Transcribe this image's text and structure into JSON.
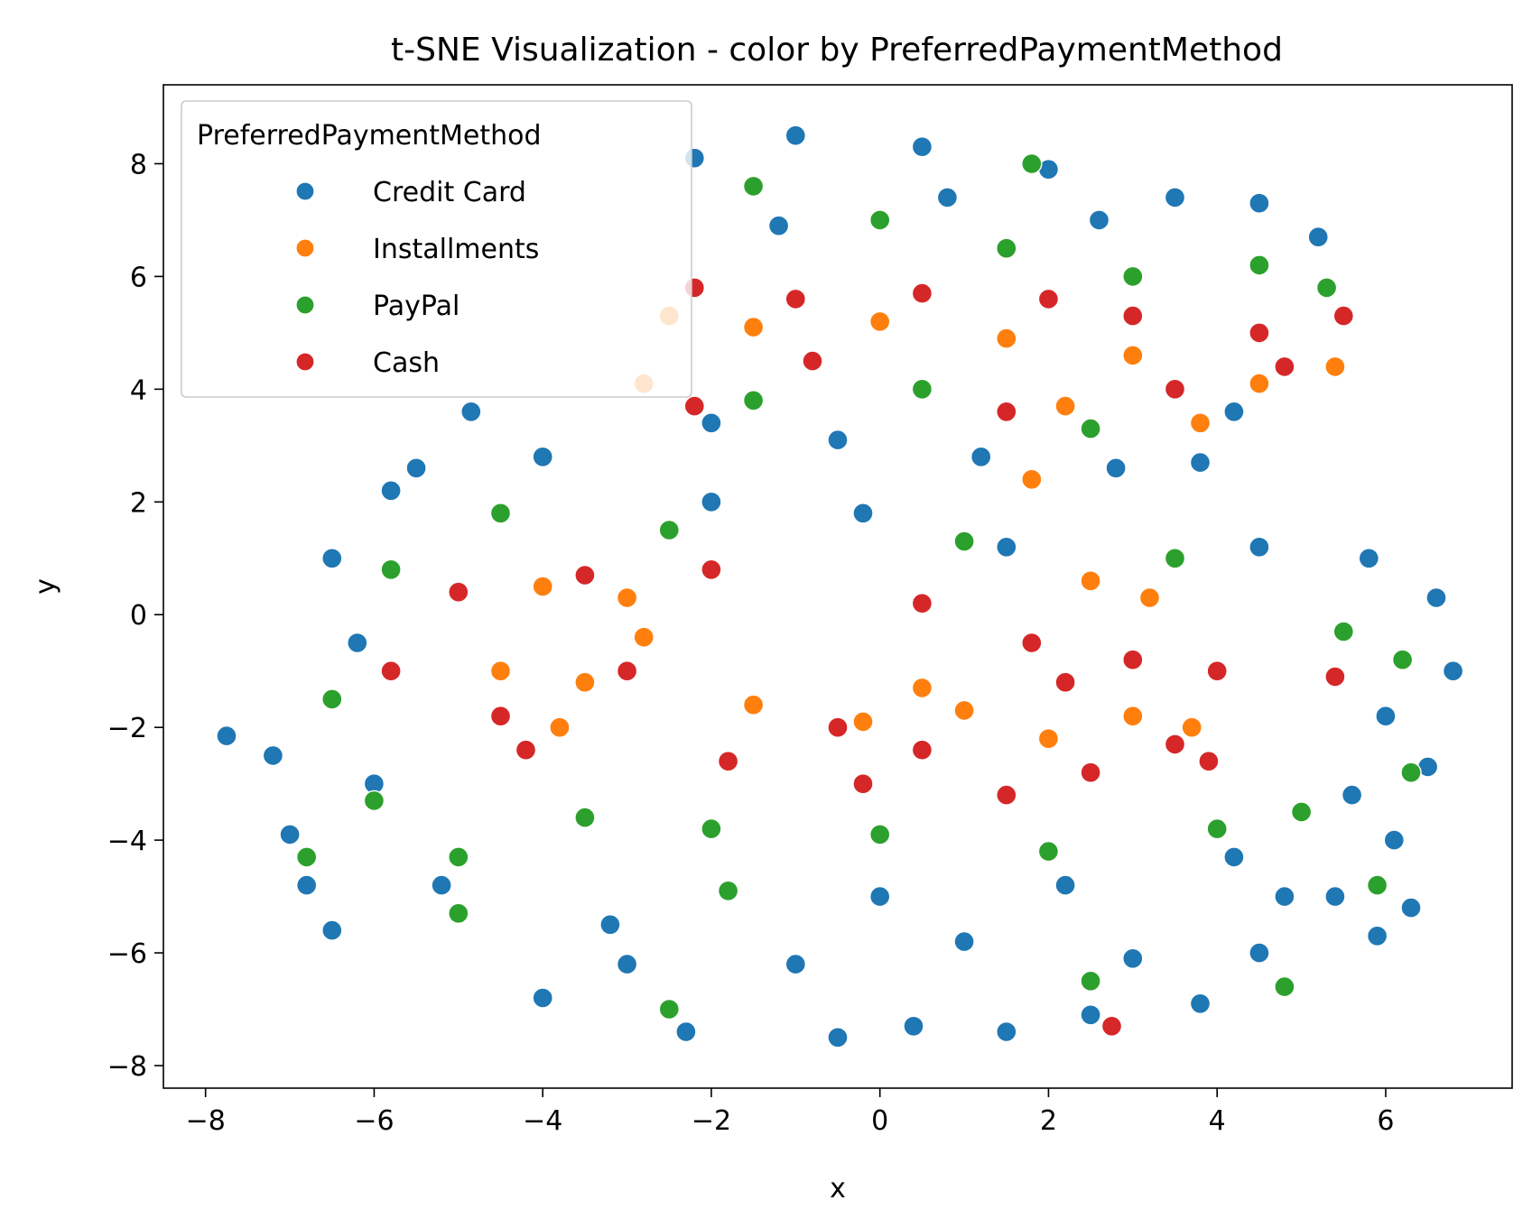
{
  "chart_data": {
    "type": "scatter",
    "title": "t-SNE Visualization - color by PreferredPaymentMethod",
    "xlabel": "x",
    "ylabel": "y",
    "xlim": [
      -8.5,
      7.5
    ],
    "ylim": [
      -8.4,
      9.4
    ],
    "xticks": [
      -8,
      -6,
      -4,
      -2,
      0,
      2,
      4,
      6
    ],
    "yticks": [
      -8,
      -6,
      -4,
      -2,
      0,
      2,
      4,
      6,
      8
    ],
    "xtick_labels": [
      "−8",
      "−6",
      "−4",
      "−2",
      "0",
      "2",
      "4",
      "6"
    ],
    "ytick_labels": [
      "−8",
      "−6",
      "−4",
      "−2",
      "0",
      "2",
      "4",
      "6",
      "8"
    ],
    "grid": false,
    "legend": {
      "title": "PreferredPaymentMethod",
      "placement": "top-left",
      "entries": [
        "Credit Card",
        "Installments",
        "PayPal",
        "Cash"
      ]
    },
    "colors": {
      "Credit Card": "#1f77b4",
      "Installments": "#ff7f0e",
      "PayPal": "#2ca02c",
      "Cash": "#d62728"
    },
    "series": [
      {
        "name": "Credit Card",
        "points": [
          [
            -7.75,
            -2.15
          ],
          [
            -4.85,
            3.6
          ],
          [
            -7.0,
            -3.9
          ],
          [
            -6.5,
            -5.6
          ],
          [
            -4.0,
            -6.8
          ],
          [
            -2.3,
            -7.4
          ],
          [
            -0.5,
            -7.5
          ],
          [
            0.4,
            -7.3
          ],
          [
            1.5,
            -7.4
          ],
          [
            2.5,
            -7.1
          ],
          [
            3.8,
            -6.9
          ],
          [
            4.5,
            -6.0
          ],
          [
            5.4,
            -5.0
          ],
          [
            5.9,
            -5.7
          ],
          [
            6.3,
            -5.2
          ],
          [
            6.5,
            -2.7
          ],
          [
            6.8,
            -1.0
          ],
          [
            6.6,
            0.3
          ],
          [
            5.8,
            1.0
          ],
          [
            4.5,
            1.2
          ],
          [
            -6.5,
            1.0
          ],
          [
            -5.5,
            2.6
          ],
          [
            -4.0,
            2.8
          ],
          [
            -2.0,
            2.0
          ],
          [
            -0.2,
            1.8
          ],
          [
            1.5,
            1.2
          ],
          [
            -6.8,
            -4.8
          ],
          [
            -5.2,
            -4.8
          ],
          [
            -3.2,
            -5.5
          ],
          [
            -1.0,
            -6.2
          ],
          [
            1.0,
            -5.8
          ],
          [
            3.0,
            -6.1
          ],
          [
            4.8,
            -5.0
          ],
          [
            -7.2,
            -2.5
          ],
          [
            6.1,
            -4.0
          ],
          [
            -2.2,
            8.1
          ],
          [
            -1.0,
            8.5
          ],
          [
            0.5,
            8.3
          ],
          [
            2.0,
            7.9
          ],
          [
            3.5,
            7.4
          ],
          [
            4.5,
            7.3
          ],
          [
            5.2,
            6.7
          ],
          [
            -2.0,
            3.4
          ],
          [
            -0.5,
            3.1
          ],
          [
            1.2,
            2.8
          ],
          [
            2.8,
            2.6
          ],
          [
            3.8,
            2.7
          ],
          [
            4.2,
            3.6
          ],
          [
            -1.2,
            6.9
          ],
          [
            0.8,
            7.4
          ],
          [
            2.6,
            7.0
          ],
          [
            -6.2,
            -0.5
          ],
          [
            -5.8,
            2.2
          ],
          [
            5.6,
            -3.2
          ],
          [
            -3.0,
            -6.2
          ],
          [
            0.0,
            -5.0
          ],
          [
            2.2,
            -4.8
          ],
          [
            4.2,
            -4.3
          ],
          [
            -6.0,
            -3.0
          ],
          [
            6.0,
            -1.8
          ]
        ]
      },
      {
        "name": "Installments",
        "points": [
          [
            1.8,
            2.4
          ],
          [
            -3.5,
            -1.2
          ],
          [
            -4.5,
            -1.0
          ],
          [
            -2.8,
            -0.4
          ],
          [
            -1.5,
            -1.6
          ],
          [
            -0.2,
            -1.9
          ],
          [
            1.0,
            -1.7
          ],
          [
            2.0,
            -2.2
          ],
          [
            3.0,
            -1.8
          ],
          [
            3.7,
            -2.0
          ],
          [
            -4.0,
            0.5
          ],
          [
            -3.0,
            0.3
          ],
          [
            3.2,
            0.3
          ],
          [
            2.5,
            0.6
          ],
          [
            -2.5,
            5.3
          ],
          [
            -1.5,
            5.1
          ],
          [
            0.0,
            5.2
          ],
          [
            1.5,
            4.9
          ],
          [
            3.0,
            4.6
          ],
          [
            4.5,
            4.1
          ],
          [
            5.4,
            4.4
          ],
          [
            -2.8,
            4.1
          ],
          [
            2.2,
            3.7
          ],
          [
            3.8,
            3.4
          ],
          [
            -3.8,
            -2.0
          ],
          [
            0.5,
            -1.3
          ]
        ]
      },
      {
        "name": "PayPal",
        "points": [
          [
            -6.0,
            -3.3
          ],
          [
            -5.0,
            -4.3
          ],
          [
            -3.5,
            -3.6
          ],
          [
            -2.0,
            -3.8
          ],
          [
            0.0,
            -3.9
          ],
          [
            2.0,
            -4.2
          ],
          [
            4.0,
            -3.8
          ],
          [
            5.0,
            -3.5
          ],
          [
            -6.5,
            -1.5
          ],
          [
            -5.8,
            0.8
          ],
          [
            5.5,
            -0.3
          ],
          [
            6.2,
            -0.8
          ],
          [
            -4.5,
            1.8
          ],
          [
            -2.5,
            1.5
          ],
          [
            1.0,
            1.3
          ],
          [
            3.5,
            1.0
          ],
          [
            -1.5,
            7.6
          ],
          [
            0.0,
            7.0
          ],
          [
            1.5,
            6.5
          ],
          [
            3.0,
            6.0
          ],
          [
            4.5,
            6.2
          ],
          [
            5.3,
            5.8
          ],
          [
            -1.5,
            3.8
          ],
          [
            0.5,
            4.0
          ],
          [
            2.5,
            3.3
          ],
          [
            1.8,
            8.0
          ],
          [
            -5.0,
            -5.3
          ],
          [
            -2.5,
            -7.0
          ],
          [
            2.5,
            -6.5
          ],
          [
            4.8,
            -6.6
          ],
          [
            6.3,
            -2.8
          ],
          [
            -6.8,
            -4.3
          ],
          [
            5.9,
            -4.8
          ],
          [
            -1.8,
            -4.9
          ]
        ]
      },
      {
        "name": "Cash",
        "points": [
          [
            2.75,
            -7.3
          ],
          [
            -5.8,
            -1.0
          ],
          [
            -5.0,
            0.4
          ],
          [
            -4.5,
            -1.8
          ],
          [
            -3.0,
            -1.0
          ],
          [
            -1.8,
            -2.6
          ],
          [
            -0.5,
            -2.0
          ],
          [
            0.5,
            -2.4
          ],
          [
            1.5,
            -3.2
          ],
          [
            2.5,
            -2.8
          ],
          [
            3.5,
            -2.3
          ],
          [
            4.0,
            -1.0
          ],
          [
            3.0,
            -0.8
          ],
          [
            1.8,
            -0.5
          ],
          [
            0.5,
            0.2
          ],
          [
            -2.0,
            0.8
          ],
          [
            -3.5,
            0.7
          ],
          [
            2.2,
            -1.2
          ],
          [
            -2.2,
            5.8
          ],
          [
            -1.0,
            5.6
          ],
          [
            0.5,
            5.7
          ],
          [
            2.0,
            5.6
          ],
          [
            3.0,
            5.3
          ],
          [
            4.5,
            5.0
          ],
          [
            5.5,
            5.3
          ],
          [
            -2.2,
            3.7
          ],
          [
            -0.8,
            4.5
          ],
          [
            1.5,
            3.6
          ],
          [
            3.5,
            4.0
          ],
          [
            4.8,
            4.4
          ],
          [
            -4.2,
            -2.4
          ],
          [
            -0.2,
            -3.0
          ],
          [
            3.9,
            -2.6
          ],
          [
            5.4,
            -1.1
          ]
        ]
      }
    ]
  }
}
